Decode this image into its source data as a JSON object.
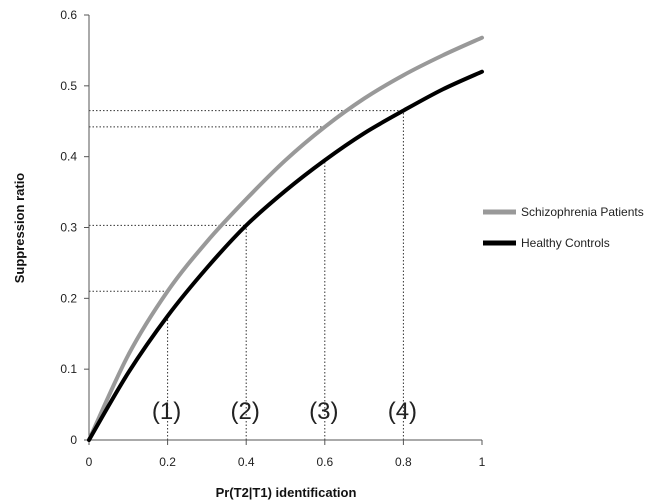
{
  "chart_data": {
    "type": "line",
    "xlabel": "Pr(T2|T1) identification",
    "ylabel": "Suppression ratio",
    "xlim": [
      0,
      1
    ],
    "ylim": [
      0,
      0.6
    ],
    "xticks": [
      0,
      0.2,
      0.4,
      0.6,
      0.8,
      1
    ],
    "xtick_labels": [
      "0",
      "0.2",
      "0.4",
      "0.6",
      "0.8",
      "1"
    ],
    "yticks": [
      0,
      0.1,
      0.2,
      0.3,
      0.4,
      0.5,
      0.6
    ],
    "ytick_labels": [
      "0",
      "0.1",
      "0.2",
      "0.3",
      "0.4",
      "0.5",
      "0.6"
    ],
    "grid": false,
    "legend_position": "right",
    "series": [
      {
        "name": "Schizophrenia Patients",
        "color": "#999999",
        "x": [
          0,
          0.1,
          0.2,
          0.3,
          0.4,
          0.5,
          0.6,
          0.7,
          0.8,
          0.9,
          1
        ],
        "y": [
          0,
          0.12,
          0.21,
          0.28,
          0.34,
          0.395,
          0.442,
          0.482,
          0.515,
          0.543,
          0.568
        ]
      },
      {
        "name": "Healthy Controls",
        "color": "#000000",
        "x": [
          0,
          0.1,
          0.2,
          0.3,
          0.4,
          0.5,
          0.6,
          0.7,
          0.8,
          0.9,
          1
        ],
        "y": [
          0,
          0.095,
          0.175,
          0.243,
          0.303,
          0.352,
          0.395,
          0.433,
          0.465,
          0.495,
          0.52
        ]
      }
    ],
    "reference_points": [
      {
        "label": "(1)",
        "x": 0.2,
        "y_low": 0.175,
        "y_high": 0.21
      },
      {
        "label": "(2)",
        "x": 0.4,
        "y_low": 0.303,
        "y_high": 0.303
      },
      {
        "label": "(3)",
        "x": 0.6,
        "y_low": 0.395,
        "y_high": 0.442
      },
      {
        "label": "(4)",
        "x": 0.8,
        "y_low": 0.465,
        "y_high": 0.465
      }
    ]
  }
}
